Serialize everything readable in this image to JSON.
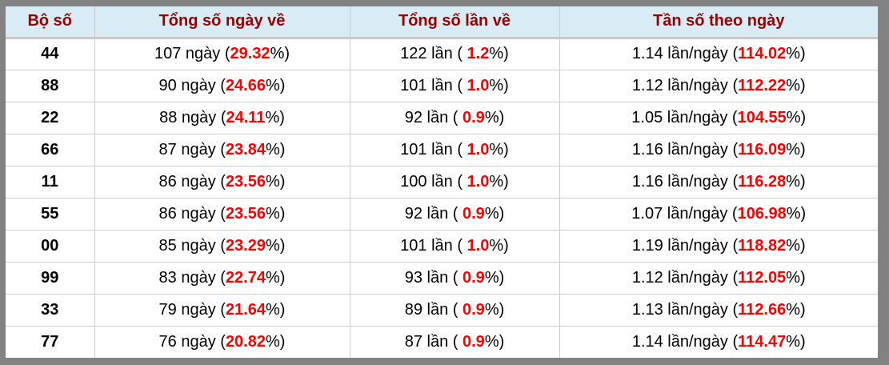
{
  "chart_data": {
    "type": "table",
    "title": "",
    "columns": [
      "Bộ số",
      "Tổng số ngày về",
      "Tổng số lần về",
      "Tần số theo ngày"
    ],
    "rows": [
      [
        "44",
        "107 ngày (29.32%)",
        "122 lần ( 1.2%)",
        "1.14 lần/ngày (114.02%)"
      ],
      [
        "88",
        "90 ngày (24.66%)",
        "101 lần ( 1.0%)",
        "1.12 lần/ngày (112.22%)"
      ],
      [
        "22",
        "88 ngày (24.11%)",
        "92 lần ( 0.9%)",
        "1.05 lần/ngày (104.55%)"
      ],
      [
        "66",
        "87 ngày (23.84%)",
        "101 lần ( 1.0%)",
        "1.16 lần/ngày (116.09%)"
      ],
      [
        "11",
        "86 ngày (23.56%)",
        "100 lần ( 1.0%)",
        "1.16 lần/ngày (116.28%)"
      ],
      [
        "55",
        "86 ngày (23.56%)",
        "92 lần ( 0.9%)",
        "1.07 lần/ngày (106.98%)"
      ],
      [
        "00",
        "85 ngày (23.29%)",
        "101 lần ( 1.0%)",
        "1.19 lần/ngày (118.82%)"
      ],
      [
        "99",
        "83 ngày (22.74%)",
        "93 lần ( 0.9%)",
        "1.12 lần/ngày (112.05%)"
      ],
      [
        "33",
        "79 ngày (21.64%)",
        "89 lần ( 0.9%)",
        "1.13 lần/ngày (112.66%)"
      ],
      [
        "77",
        "76 ngày (20.82%)",
        "87 lần ( 0.9%)",
        "1.14 lần/ngày (114.47%)"
      ]
    ],
    "numeric": {
      "pairs": [
        "44",
        "88",
        "22",
        "66",
        "11",
        "55",
        "00",
        "99",
        "33",
        "77"
      ],
      "days": [
        107,
        90,
        88,
        87,
        86,
        86,
        85,
        83,
        79,
        76
      ],
      "days_pct": [
        29.32,
        24.66,
        24.11,
        23.84,
        23.56,
        23.56,
        23.29,
        22.74,
        21.64,
        20.82
      ],
      "times": [
        122,
        101,
        92,
        101,
        100,
        92,
        101,
        93,
        89,
        87
      ],
      "times_pct": [
        1.2,
        1.0,
        0.9,
        1.0,
        1.0,
        0.9,
        1.0,
        0.9,
        0.9,
        0.9
      ],
      "freq_per_day": [
        1.14,
        1.12,
        1.05,
        1.16,
        1.16,
        1.07,
        1.19,
        1.12,
        1.13,
        1.14
      ],
      "freq_pct": [
        114.02,
        112.22,
        104.55,
        116.09,
        116.28,
        106.98,
        118.82,
        112.05,
        112.66,
        114.47
      ]
    },
    "layout": {
      "grid": true,
      "header_row": true
    }
  },
  "colors": {
    "frame": "#828282",
    "header_bg": "#d9ecf6",
    "header_text": "#990000",
    "highlight": "#ff0000",
    "body_text": "#000000",
    "grid_line": "#cccccc",
    "header_rule": "#c9c9c9",
    "row_bg": "#ffffff"
  }
}
